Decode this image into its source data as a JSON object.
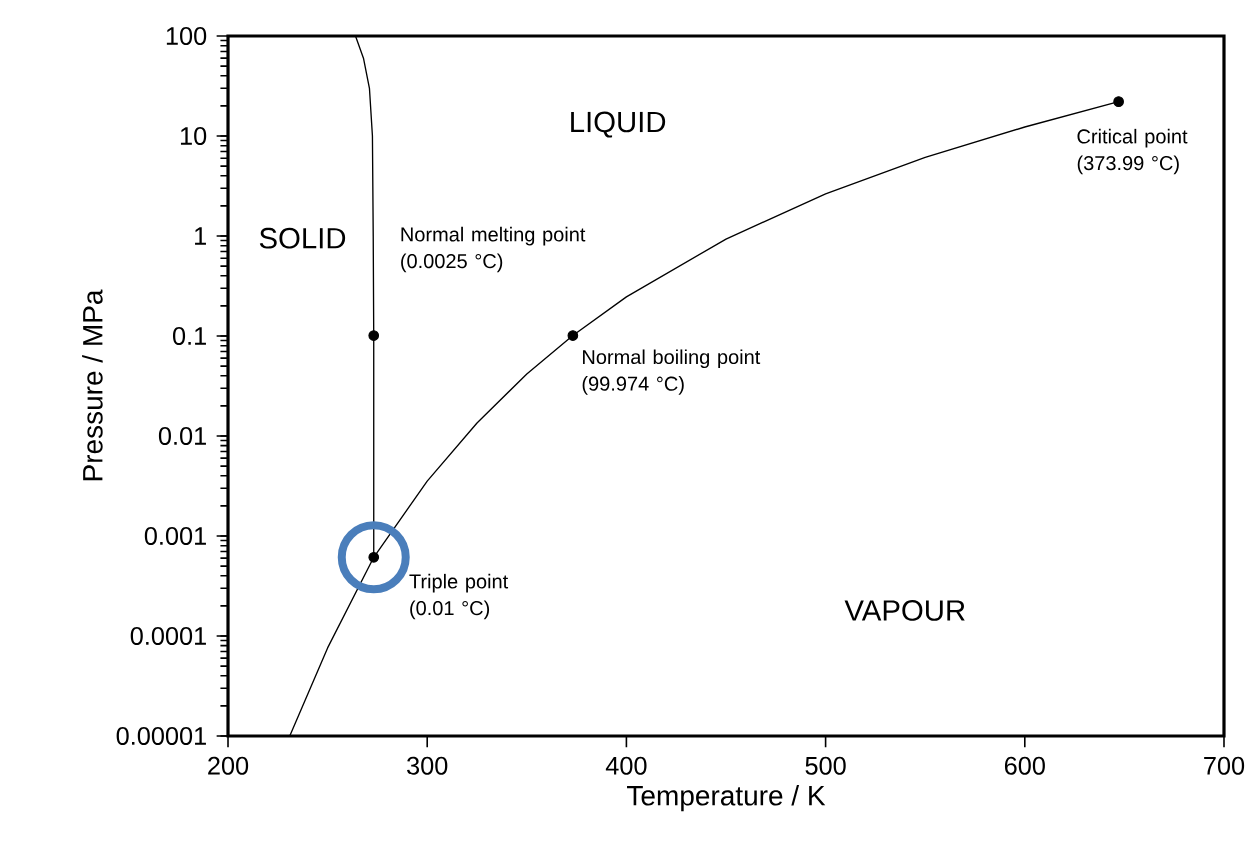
{
  "chart_data": {
    "type": "line",
    "xlabel": "Temperature / K",
    "ylabel": "Pressure / MPa",
    "log": "y",
    "grid": false,
    "xlim": [
      200,
      700
    ],
    "xticks": [
      200,
      300,
      400,
      500,
      600,
      700
    ],
    "ylim": [
      1e-05,
      100
    ],
    "yticks": [
      {
        "value": 1e-05,
        "label": "0.00001"
      },
      {
        "value": 0.0001,
        "label": "0.0001"
      },
      {
        "value": 0.001,
        "label": "0.001"
      },
      {
        "value": 0.01,
        "label": "0.01"
      },
      {
        "value": 0.1,
        "label": "0.1"
      },
      {
        "value": 1,
        "label": "1"
      },
      {
        "value": 10,
        "label": "10"
      },
      {
        "value": 100,
        "label": "100"
      }
    ],
    "series": [
      {
        "color": "#000000",
        "marker": "none",
        "x": [
          273.16,
          273.15,
          272.9,
          272.5,
          271,
          268,
          264
        ],
        "values": [
          0.000612,
          0.1,
          1,
          10,
          30,
          60,
          100
        ]
      },
      {
        "color": "#000000",
        "marker": "none",
        "x": [
          231,
          250,
          273.16,
          300,
          325,
          350,
          373.12,
          400,
          450,
          500,
          550,
          600,
          647.1
        ],
        "values": [
          1e-05,
          7.6e-05,
          0.000612,
          0.00354,
          0.0135,
          0.0417,
          0.101,
          0.246,
          0.932,
          2.64,
          6.12,
          12.3,
          22.06
        ]
      },
      {
        "type": "scatter",
        "color": "#000000",
        "marker": "circle",
        "x": [
          273.15,
          373.12,
          273.16,
          647.1
        ],
        "values": [
          0.101,
          0.101,
          0.000612,
          22.06
        ]
      }
    ],
    "annotations": [
      "SOLID",
      "LIQUID",
      "VAPOUR",
      "Normal melting point (0.0025 °C)",
      {
        "text": "Normal boiling point (99.974 °C)",
        "x": 373.12,
        "y": 0.101
      },
      {
        "text": "Triple point (0.01 °C)",
        "x": 273.16,
        "y": 0.000612
      },
      {
        "text": "Critical point (373.99 °C)",
        "x": 647.1,
        "y": 22.06
      }
    ]
  }
}
